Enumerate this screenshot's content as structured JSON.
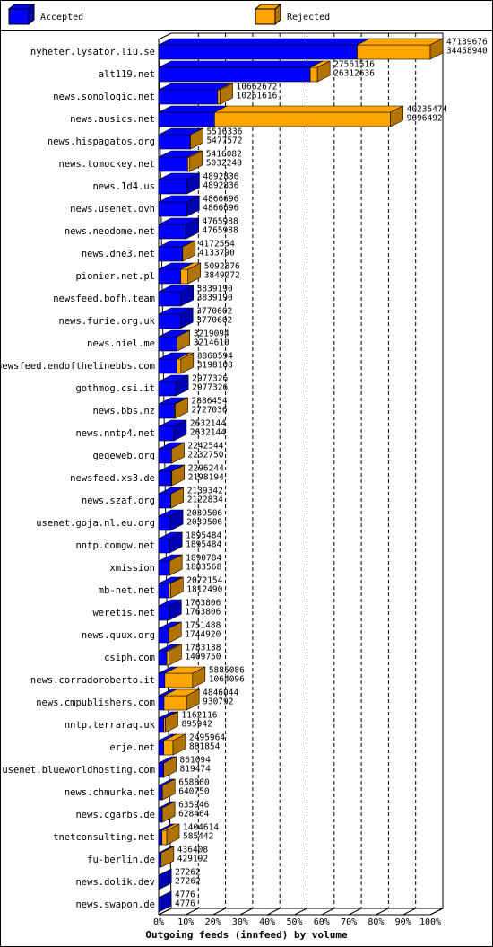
{
  "chart_data": {
    "type": "bar3d",
    "x_label": "Outgoing feeds (innfeed) by volume",
    "categories": [
      "nyheter.lysator.liu.se",
      "alt119.net",
      "news.sonologic.net",
      "news.ausics.net",
      "news.hispagatos.org",
      "news.tomockey.net",
      "news.1d4.us",
      "news.usenet.ovh",
      "news.neodome.net",
      "news.dne3.net",
      "pionier.net.pl",
      "newsfeed.bofh.team",
      "news.furie.org.uk",
      "news.niel.me",
      "newsfeed.endofthelinebbs.com",
      "gothmog.csi.it",
      "news.bbs.nz",
      "news.nntp4.net",
      "gegeweb.org",
      "newsfeed.xs3.de",
      "news.szaf.org",
      "usenet.goja.nl.eu.org",
      "nntp.comgw.net",
      "xmission",
      "mb-net.net",
      "weretis.net",
      "news.quux.org",
      "csiph.com",
      "news.corradoroberto.it",
      "news.cmpublishers.com",
      "nntp.terraraq.uk",
      "erje.net",
      "usenet.blueworldhosting.com",
      "news.chmurka.net",
      "news.cgarbs.de",
      "tnetconsulting.net",
      "fu-berlin.de",
      "news.dolik.dev",
      "news.swapon.de"
    ],
    "offered": [
      47139676,
      27561516,
      10662672,
      40235474,
      5516336,
      5416082,
      4892836,
      4866696,
      4765988,
      4172554,
      5092876,
      3839190,
      3770602,
      3219094,
      3860594,
      2977326,
      2886454,
      2632144,
      2242544,
      2296244,
      2139342,
      2039506,
      1895484,
      1890784,
      2072154,
      1763806,
      1751488,
      1783138,
      5885086,
      4846044,
      1162116,
      2495964,
      861094,
      658860,
      635946,
      1404614,
      436408,
      27262,
      4776
    ],
    "series": [
      {
        "name": "Accepted",
        "color": "#0000ff",
        "values": [
          34458940,
          26312636,
          10261616,
          9696492,
          5477572,
          5032248,
          4892836,
          4866696,
          4765988,
          4133790,
          3849272,
          3839190,
          3770602,
          3214610,
          3198108,
          2977326,
          2727036,
          2632144,
          2232750,
          2198194,
          2122834,
          2039506,
          1895484,
          1883568,
          1812490,
          1763806,
          1744920,
          1409750,
          1064096,
          930792,
          895942,
          881854,
          819474,
          640750,
          628464,
          585442,
          429192,
          27262,
          4776
        ]
      },
      {
        "name": "Rejected",
        "color": "#ffa500"
      }
    ],
    "xlim": [
      0,
      47139676
    ],
    "xticks": [
      {
        "value": 0,
        "label": "0%"
      },
      {
        "value": 4713967.6,
        "label": "10%"
      },
      {
        "value": 9427935.2,
        "label": "20%"
      },
      {
        "value": 14141902.8,
        "label": "30%"
      },
      {
        "value": 18855870.4,
        "label": "40%"
      },
      {
        "value": 23569838,
        "label": "50%"
      },
      {
        "value": 28283805.6,
        "label": "60%"
      },
      {
        "value": 32997773.2,
        "label": "70%"
      },
      {
        "value": 37711740.8,
        "label": "80%"
      },
      {
        "value": 42425708.4,
        "label": "90%"
      },
      {
        "value": 47139676,
        "label": "100%"
      }
    ],
    "grid": true
  }
}
